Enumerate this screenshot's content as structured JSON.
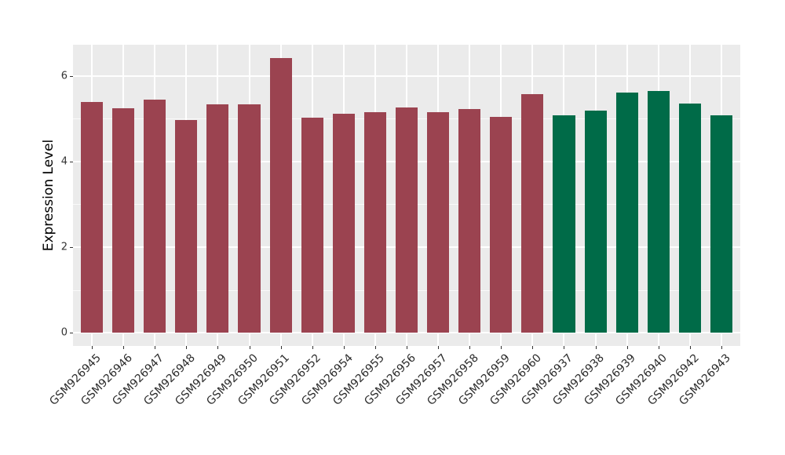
{
  "chart_data": {
    "type": "bar",
    "title": "",
    "xlabel": "",
    "ylabel": "Expression Level",
    "categories": [
      "GSM926945",
      "GSM926946",
      "GSM926947",
      "GSM926948",
      "GSM926949",
      "GSM926950",
      "GSM926951",
      "GSM926952",
      "GSM926954",
      "GSM926955",
      "GSM926956",
      "GSM926957",
      "GSM926958",
      "GSM926959",
      "GSM926960",
      "GSM926937",
      "GSM926938",
      "GSM926939",
      "GSM926940",
      "GSM926942",
      "GSM926943"
    ],
    "values": [
      5.39,
      5.25,
      5.45,
      4.97,
      5.34,
      5.34,
      6.42,
      5.02,
      5.12,
      5.15,
      5.27,
      5.15,
      5.23,
      5.05,
      5.57,
      5.08,
      5.19,
      5.62,
      5.64,
      5.35,
      5.08
    ],
    "groups": [
      "maroon",
      "maroon",
      "maroon",
      "maroon",
      "maroon",
      "maroon",
      "maroon",
      "maroon",
      "maroon",
      "maroon",
      "maroon",
      "maroon",
      "maroon",
      "maroon",
      "maroon",
      "green",
      "green",
      "green",
      "green",
      "green",
      "green"
    ],
    "group_colors": {
      "maroon": "#9B4350",
      "green": "#006B48"
    },
    "y_ticks": [
      0,
      2,
      4,
      6
    ],
    "y_minor_ticks": [
      1,
      3,
      5
    ],
    "ylim": [
      -0.31,
      6.73
    ],
    "bar_width_fraction": 0.7,
    "grid": true,
    "legend": "none",
    "panel_bg": "#EBEBEB",
    "grid_color": "#FFFFFF",
    "axis_text_color": "#333333"
  }
}
